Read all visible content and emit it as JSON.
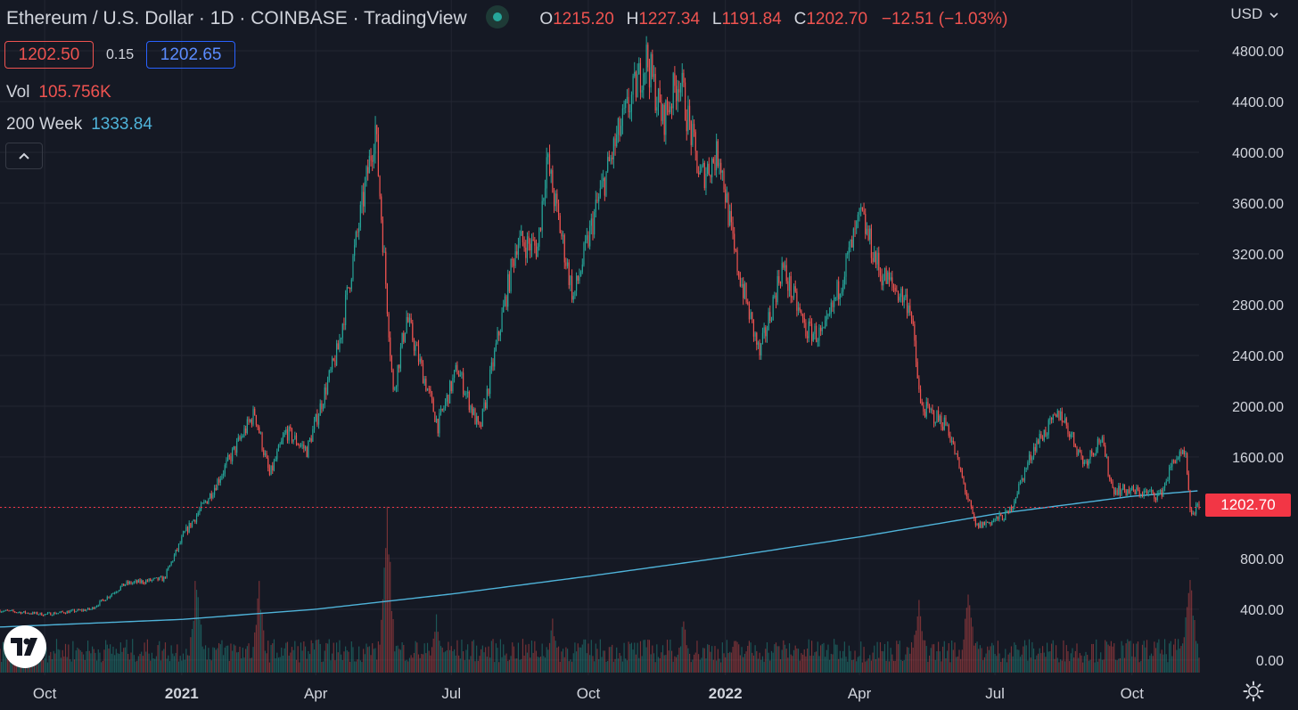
{
  "header": {
    "title": "Ethereum / U.S. Dollar · 1D · COINBASE · TradingView",
    "ohlc": [
      {
        "label": "O",
        "value": "1215.20"
      },
      {
        "label": "H",
        "value": "1227.34"
      },
      {
        "label": "L",
        "value": "1191.84"
      },
      {
        "label": "C",
        "value": "1202.70"
      }
    ],
    "change": "−12.51 (−1.03%)"
  },
  "quote": {
    "sell": "1202.50",
    "spread": "0.15",
    "buy": "1202.65"
  },
  "indicators": {
    "volume": {
      "name": "Vol",
      "value": "105.756K"
    },
    "ma": {
      "name": "200 Week",
      "value": "1333.84"
    }
  },
  "currency": "USD",
  "last_price": "1202.70",
  "icons": {
    "collapse": "chevron-up-icon",
    "live": "live-status-icon",
    "logo": "tradingview-logo-icon",
    "settings": "gear-icon"
  },
  "colors": {
    "background": "#151924",
    "up": "#26a69a",
    "down": "#ef5350",
    "ma_line": "#4fb3d9",
    "price_tag": "#f23645",
    "grid": "#232632"
  },
  "chart_data": {
    "type": "candlestick",
    "title": "Ethereum / U.S. Dollar · 1D · COINBASE · TradingView",
    "ylim": [
      -120,
      5200
    ],
    "y_ticks": [
      0,
      400,
      800,
      1200,
      1600,
      2000,
      2400,
      2800,
      3200,
      3600,
      4000,
      4400,
      4800
    ],
    "y_tick_labels": [
      "0.00",
      "400.00",
      "800.00",
      "",
      "1600.00",
      "2000.00",
      "2400.00",
      "2800.00",
      "3200.00",
      "3600.00",
      "4000.00",
      "4400.00",
      "4800.00"
    ],
    "x_range": [
      "2020-09-01",
      "2022-11-15"
    ],
    "x_ticks": [
      {
        "date": "2020-10-01",
        "label": "Oct",
        "bold": false
      },
      {
        "date": "2021-01-01",
        "label": "2021",
        "bold": true
      },
      {
        "date": "2021-04-01",
        "label": "Apr",
        "bold": false
      },
      {
        "date": "2021-07-01",
        "label": "Jul",
        "bold": false
      },
      {
        "date": "2021-10-01",
        "label": "Oct",
        "bold": false
      },
      {
        "date": "2022-01-01",
        "label": "2022",
        "bold": true
      },
      {
        "date": "2022-04-01",
        "label": "Apr",
        "bold": false
      },
      {
        "date": "2022-07-01",
        "label": "Jul",
        "bold": false
      },
      {
        "date": "2022-10-01",
        "label": "Oct",
        "bold": false
      }
    ],
    "last_price": 1202.7,
    "price_anchors": [
      [
        "2020-09-01",
        390
      ],
      [
        "2020-10-01",
        360
      ],
      [
        "2020-11-01",
        400
      ],
      [
        "2020-11-24",
        600
      ],
      [
        "2020-12-20",
        640
      ],
      [
        "2021-01-03",
        1000
      ],
      [
        "2021-01-20",
        1300
      ],
      [
        "2021-02-19",
        1950
      ],
      [
        "2021-03-01",
        1450
      ],
      [
        "2021-03-12",
        1800
      ],
      [
        "2021-03-26",
        1650
      ],
      [
        "2021-04-16",
        2450
      ],
      [
        "2021-05-11",
        4200
      ],
      [
        "2021-05-23",
        2100
      ],
      [
        "2021-06-01",
        2700
      ],
      [
        "2021-06-22",
        1850
      ],
      [
        "2021-07-05",
        2300
      ],
      [
        "2021-07-20",
        1800
      ],
      [
        "2021-08-14",
        3300
      ],
      [
        "2021-08-28",
        3250
      ],
      [
        "2021-09-03",
        3950
      ],
      [
        "2021-09-21",
        2850
      ],
      [
        "2021-10-06",
        3550
      ],
      [
        "2021-10-20",
        4100
      ],
      [
        "2021-11-09",
        4750
      ],
      [
        "2021-11-20",
        4250
      ],
      [
        "2021-12-01",
        4600
      ],
      [
        "2021-12-15",
        3800
      ],
      [
        "2021-12-28",
        4000
      ],
      [
        "2022-01-07",
        3200
      ],
      [
        "2022-01-24",
        2400
      ],
      [
        "2022-02-08",
        3100
      ],
      [
        "2022-02-24",
        2600
      ],
      [
        "2022-03-08",
        2550
      ],
      [
        "2022-04-02",
        3500
      ],
      [
        "2022-04-15",
        3050
      ],
      [
        "2022-05-05",
        2800
      ],
      [
        "2022-05-12",
        2000
      ],
      [
        "2022-05-30",
        1850
      ],
      [
        "2022-06-18",
        1050
      ],
      [
        "2022-06-30",
        1100
      ],
      [
        "2022-07-10",
        1150
      ],
      [
        "2022-07-28",
        1700
      ],
      [
        "2022-08-14",
        1950
      ],
      [
        "2022-08-30",
        1550
      ],
      [
        "2022-09-10",
        1750
      ],
      [
        "2022-09-18",
        1350
      ],
      [
        "2022-10-20",
        1300
      ],
      [
        "2022-10-30",
        1600
      ],
      [
        "2022-11-06",
        1600
      ],
      [
        "2022-11-09",
        1150
      ],
      [
        "2022-11-15",
        1202.7
      ]
    ],
    "ma_200_week": [
      [
        "2020-09-01",
        260
      ],
      [
        "2021-01-01",
        320
      ],
      [
        "2021-04-01",
        400
      ],
      [
        "2021-07-01",
        520
      ],
      [
        "2021-10-01",
        660
      ],
      [
        "2022-01-01",
        810
      ],
      [
        "2022-04-01",
        970
      ],
      [
        "2022-07-01",
        1150
      ],
      [
        "2022-10-01",
        1290
      ],
      [
        "2022-11-15",
        1333.84
      ]
    ],
    "volume_peaks": [
      [
        "2021-01-11",
        0.65
      ],
      [
        "2021-02-22",
        0.55
      ],
      [
        "2021-05-19",
        1.0
      ],
      [
        "2021-06-21",
        0.35
      ],
      [
        "2021-09-07",
        0.32
      ],
      [
        "2021-12-04",
        0.33
      ],
      [
        "2022-05-11",
        0.45
      ],
      [
        "2022-06-13",
        0.55
      ],
      [
        "2022-11-09",
        0.72
      ],
      [
        "2022-11-08",
        0.52
      ]
    ]
  }
}
